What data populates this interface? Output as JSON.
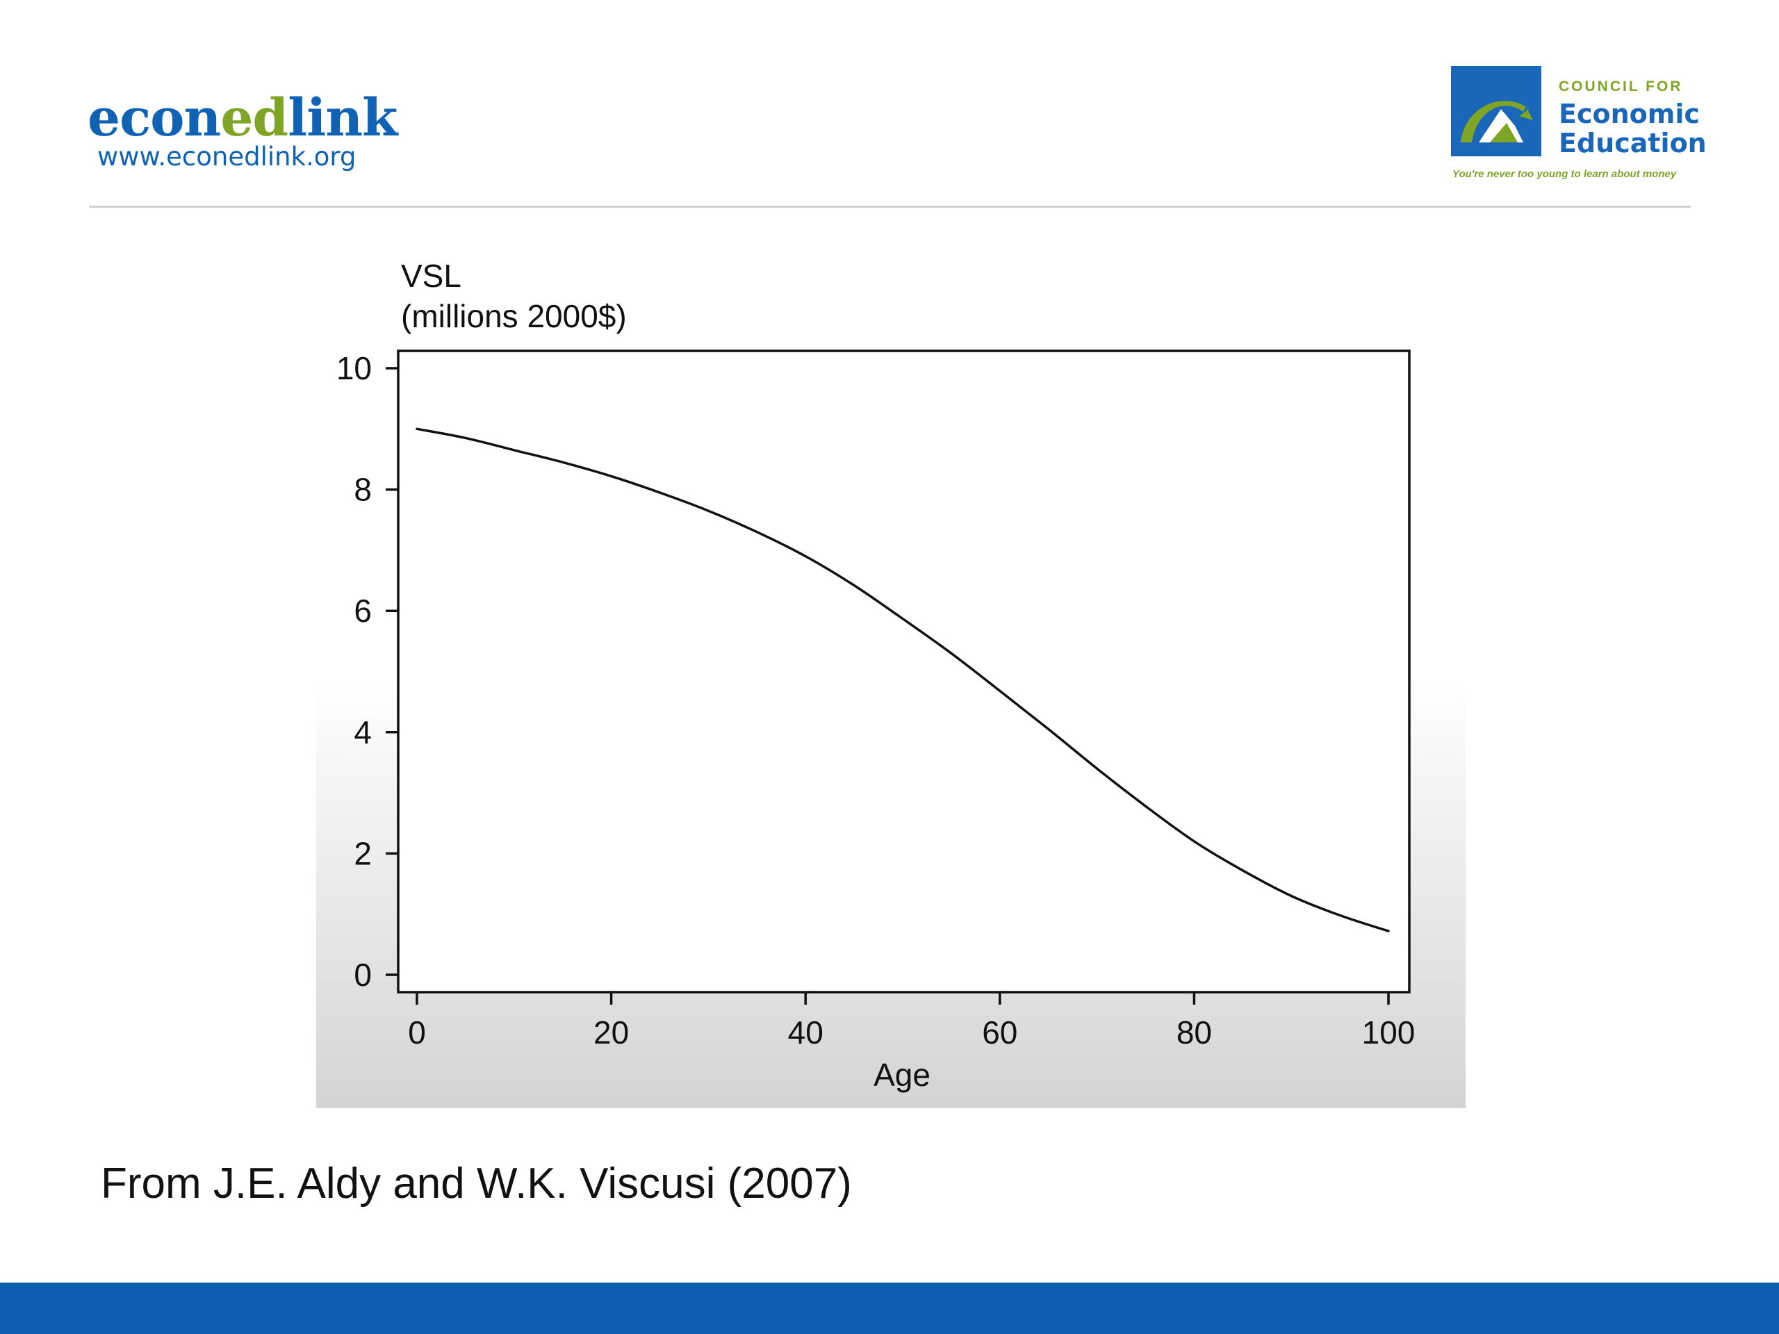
{
  "header": {
    "brand_left": {
      "pre": "econ",
      "highlight": "ed",
      "post": "link",
      "url": "www.econedlink.org"
    },
    "brand_right": {
      "small_top": "COUNCIL FOR",
      "line1": "Economic",
      "line2": "Education",
      "tagline": "You're never too young to learn about money",
      "colors": {
        "blue": "#1a66b8",
        "green": "#7ea526"
      }
    }
  },
  "chart_data": {
    "type": "line",
    "ylabel_line1": "VSL",
    "ylabel_line2": "(millions 2000$)",
    "xlabel": "Age",
    "xlim": [
      0,
      100
    ],
    "ylim": [
      0,
      10
    ],
    "xticks": [
      0,
      20,
      40,
      60,
      80,
      100
    ],
    "yticks": [
      0,
      2,
      4,
      6,
      8,
      10
    ],
    "grid": false,
    "series": [
      {
        "color": "#111111",
        "x": [
          0,
          5,
          10,
          15,
          20,
          25,
          30,
          35,
          40,
          45,
          50,
          55,
          60,
          65,
          70,
          75,
          80,
          85,
          90,
          95,
          100
        ],
        "y": [
          9.0,
          8.85,
          8.65,
          8.45,
          8.22,
          7.95,
          7.65,
          7.3,
          6.9,
          6.42,
          5.87,
          5.3,
          4.68,
          4.05,
          3.4,
          2.78,
          2.2,
          1.72,
          1.3,
          0.98,
          0.72
        ]
      }
    ]
  },
  "caption": "From J.E. Aldy and W.K. Viscusi (2007)",
  "colors": {
    "footer_bar": "#0d5cb0",
    "brand_blue": "#0f62b4",
    "brand_green": "#7ea526"
  }
}
